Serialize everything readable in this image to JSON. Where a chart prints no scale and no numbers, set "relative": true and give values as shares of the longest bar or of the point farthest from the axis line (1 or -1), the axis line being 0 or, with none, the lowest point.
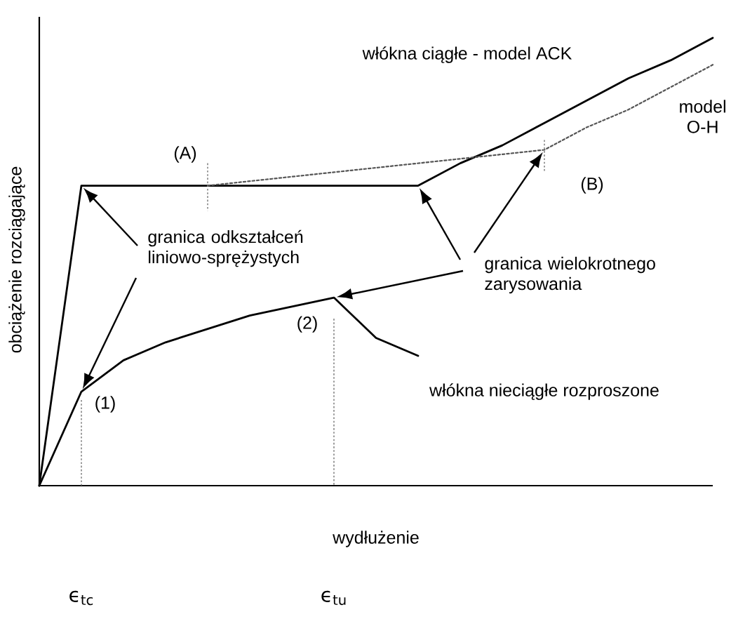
{
  "chart_data": {
    "type": "line",
    "relative": true,
    "xlabel": "wydłużenie",
    "ylabel": "obciążenie rozciągające",
    "categories": [
      null,
      "ϵ$_{tc}$",
      null,
      null,
      null,
      null,
      null,
      "ϵ$_{tu}$",
      null,
      null,
      null,
      null,
      null,
      null,
      null,
      null,
      null
    ],
    "marker": "none",
    "series": [
      {
        "name": "włókna ciągłe - model ACK",
        "color": "#000000",
        "line_style": "solid",
        "values": [
          0,
          0.67,
          0.67,
          0.67,
          0.67,
          0.67,
          0.67,
          0.67,
          0.67,
          0.67,
          0.72,
          0.76,
          0.81,
          0.86,
          0.91,
          0.95,
          1
        ]
      },
      {
        "name": "model O-H",
        "color": "#555555",
        "line_style": "dotted",
        "values": [
          null,
          null,
          null,
          null,
          0.67,
          0.68,
          0.69,
          0.7,
          0.71,
          0.72,
          0.73,
          0.74,
          0.75,
          0.8,
          0.84,
          0.89,
          0.94
        ]
      },
      {
        "name": "włókna nieciągłe rozproszone",
        "color": "#000000",
        "line_style": "solid",
        "values": [
          0,
          0.21,
          0.28,
          0.32,
          0.35,
          0.38,
          0.4,
          0.42,
          0.33,
          0.29,
          null,
          null,
          null,
          null,
          null,
          null,
          null
        ]
      }
    ],
    "annotations": [
      "(A)",
      "(B)",
      {
        "text": "(1)",
        "x": "ϵ$_{tc}$",
        "y": 0.21
      },
      {
        "text": "(2)",
        "x": "ϵ$_{tu}$",
        "y": 0.42
      },
      "granica odkształceń liniowo-sprężystych",
      "granica wielokrotnego zarysowania"
    ]
  }
}
